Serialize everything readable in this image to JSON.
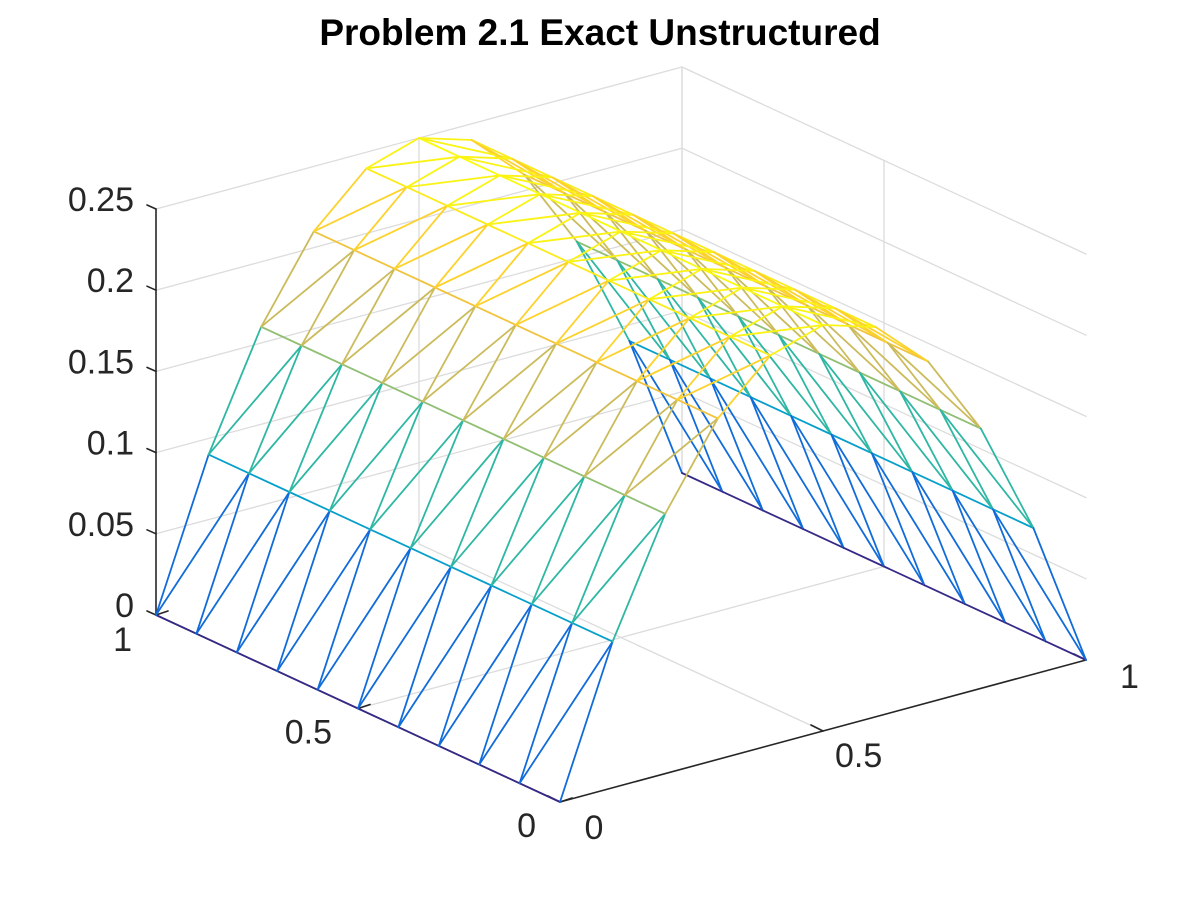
{
  "chart_data": {
    "type": "surface-mesh",
    "title": "Problem 2.1 Exact Unstructured",
    "xlabel": "",
    "ylabel": "",
    "zlabel": "",
    "function": "z = x(1-x)",
    "xlim": [
      0,
      1
    ],
    "ylim": [
      0,
      1
    ],
    "zlim": [
      0,
      0.25
    ],
    "x_ticks": [
      "0",
      "0.5",
      "1"
    ],
    "y_ticks": [
      "0",
      "0.5",
      "1"
    ],
    "z_ticks": [
      "0",
      "0.05",
      "0.1",
      "0.15",
      "0.2",
      "0.25"
    ],
    "grid": true,
    "colormap": "parula",
    "colormap_stops": [
      "#352a87",
      "#0f5cdd",
      "#1481d6",
      "#06a4ca",
      "#2eb7a4",
      "#87bf77",
      "#d1bb59",
      "#fec832",
      "#f9fb0e"
    ],
    "grid_line_color": "#dcdcdc",
    "axis_line_color": "#262626",
    "x_nodes": [
      0,
      0.1,
      0.2,
      0.3,
      0.4,
      0.5,
      0.6,
      0.7,
      0.8,
      0.9,
      1
    ],
    "y_nodes": [
      0,
      0.1,
      0.2,
      0.3,
      0.4,
      0.5,
      0.6,
      0.7,
      0.8,
      0.9,
      1
    ],
    "z_values": [
      [
        0,
        0.09,
        0.16,
        0.21,
        0.24,
        0.25,
        0.24,
        0.21,
        0.16,
        0.09,
        0
      ],
      [
        0,
        0.09,
        0.16,
        0.21,
        0.24,
        0.25,
        0.24,
        0.21,
        0.16,
        0.09,
        0
      ],
      [
        0,
        0.09,
        0.16,
        0.21,
        0.24,
        0.25,
        0.24,
        0.21,
        0.16,
        0.09,
        0
      ],
      [
        0,
        0.09,
        0.16,
        0.21,
        0.24,
        0.25,
        0.24,
        0.21,
        0.16,
        0.09,
        0
      ],
      [
        0,
        0.09,
        0.16,
        0.21,
        0.24,
        0.25,
        0.24,
        0.21,
        0.16,
        0.09,
        0
      ],
      [
        0,
        0.09,
        0.16,
        0.21,
        0.24,
        0.25,
        0.24,
        0.21,
        0.16,
        0.09,
        0
      ],
      [
        0,
        0.09,
        0.16,
        0.21,
        0.24,
        0.25,
        0.24,
        0.21,
        0.16,
        0.09,
        0
      ],
      [
        0,
        0.09,
        0.16,
        0.21,
        0.24,
        0.25,
        0.24,
        0.21,
        0.16,
        0.09,
        0
      ],
      [
        0,
        0.09,
        0.16,
        0.21,
        0.24,
        0.25,
        0.24,
        0.21,
        0.16,
        0.09,
        0
      ],
      [
        0,
        0.09,
        0.16,
        0.21,
        0.24,
        0.25,
        0.24,
        0.21,
        0.16,
        0.09,
        0
      ],
      [
        0,
        0.09,
        0.16,
        0.21,
        0.24,
        0.25,
        0.24,
        0.21,
        0.16,
        0.09,
        0
      ]
    ]
  }
}
